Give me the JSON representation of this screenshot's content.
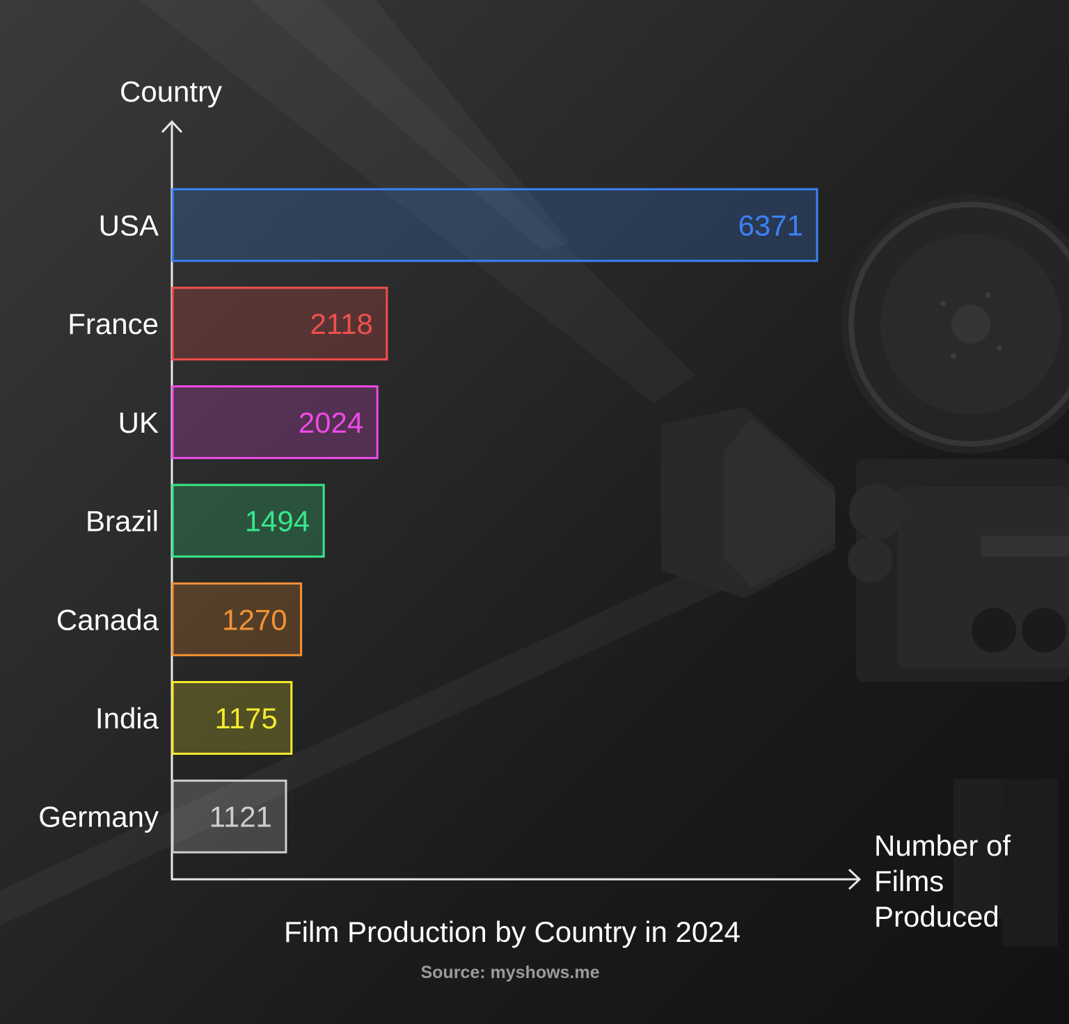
{
  "chart_data": {
    "type": "bar",
    "orientation": "horizontal",
    "title": "Film Production by Country in 2024",
    "source": "Source: myshows.me",
    "xlabel": "Number of Films Produced",
    "ylabel": "Country",
    "categories": [
      "USA",
      "France",
      "UK",
      "Brazil",
      "Canada",
      "India",
      "Germany"
    ],
    "values": [
      6371,
      2118,
      2024,
      1494,
      1270,
      1175,
      1121
    ],
    "colors": [
      "#3B82F6",
      "#F0504F",
      "#EE4BE6",
      "#37E889",
      "#F59234",
      "#F3EA2E",
      "#CFCFCF"
    ],
    "xlim": [
      0,
      6371
    ],
    "grid": false,
    "data_labels": true
  }
}
